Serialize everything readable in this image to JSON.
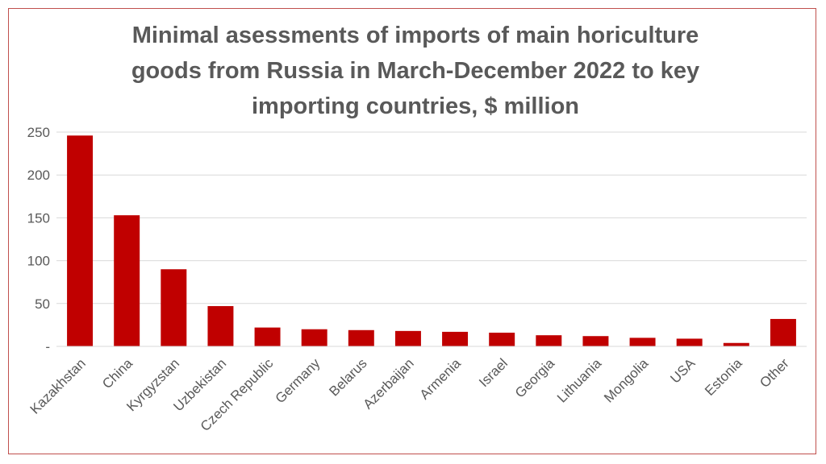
{
  "chart_data": {
    "type": "bar",
    "title": "Minimal asessments of imports of main horiculture goods from Russia in March-December 2022 to key importing countries, $ million",
    "categories": [
      "Kazakhstan",
      "China",
      "Kyrgyzstan",
      "Uzbekistan",
      "Czech Republic",
      "Germany",
      "Belarus",
      "Azerbaijan",
      "Armenia",
      "Israel",
      "Georgia",
      "Lithuania",
      "Mongolia",
      "USA",
      "Estonia",
      "Other"
    ],
    "values": [
      246,
      153,
      90,
      47,
      22,
      20,
      19,
      18,
      17,
      16,
      13,
      12,
      10,
      9,
      4,
      32
    ],
    "ylim": [
      0,
      250
    ],
    "yticks": [
      0,
      50,
      100,
      150,
      200,
      250
    ],
    "ytick_labels": [
      "-",
      "50",
      "100",
      "150",
      "200",
      "250"
    ],
    "grid": true,
    "bar_color": "#c00000",
    "grid_color": "#d9d9d9",
    "frame_color": "#c0504d"
  }
}
